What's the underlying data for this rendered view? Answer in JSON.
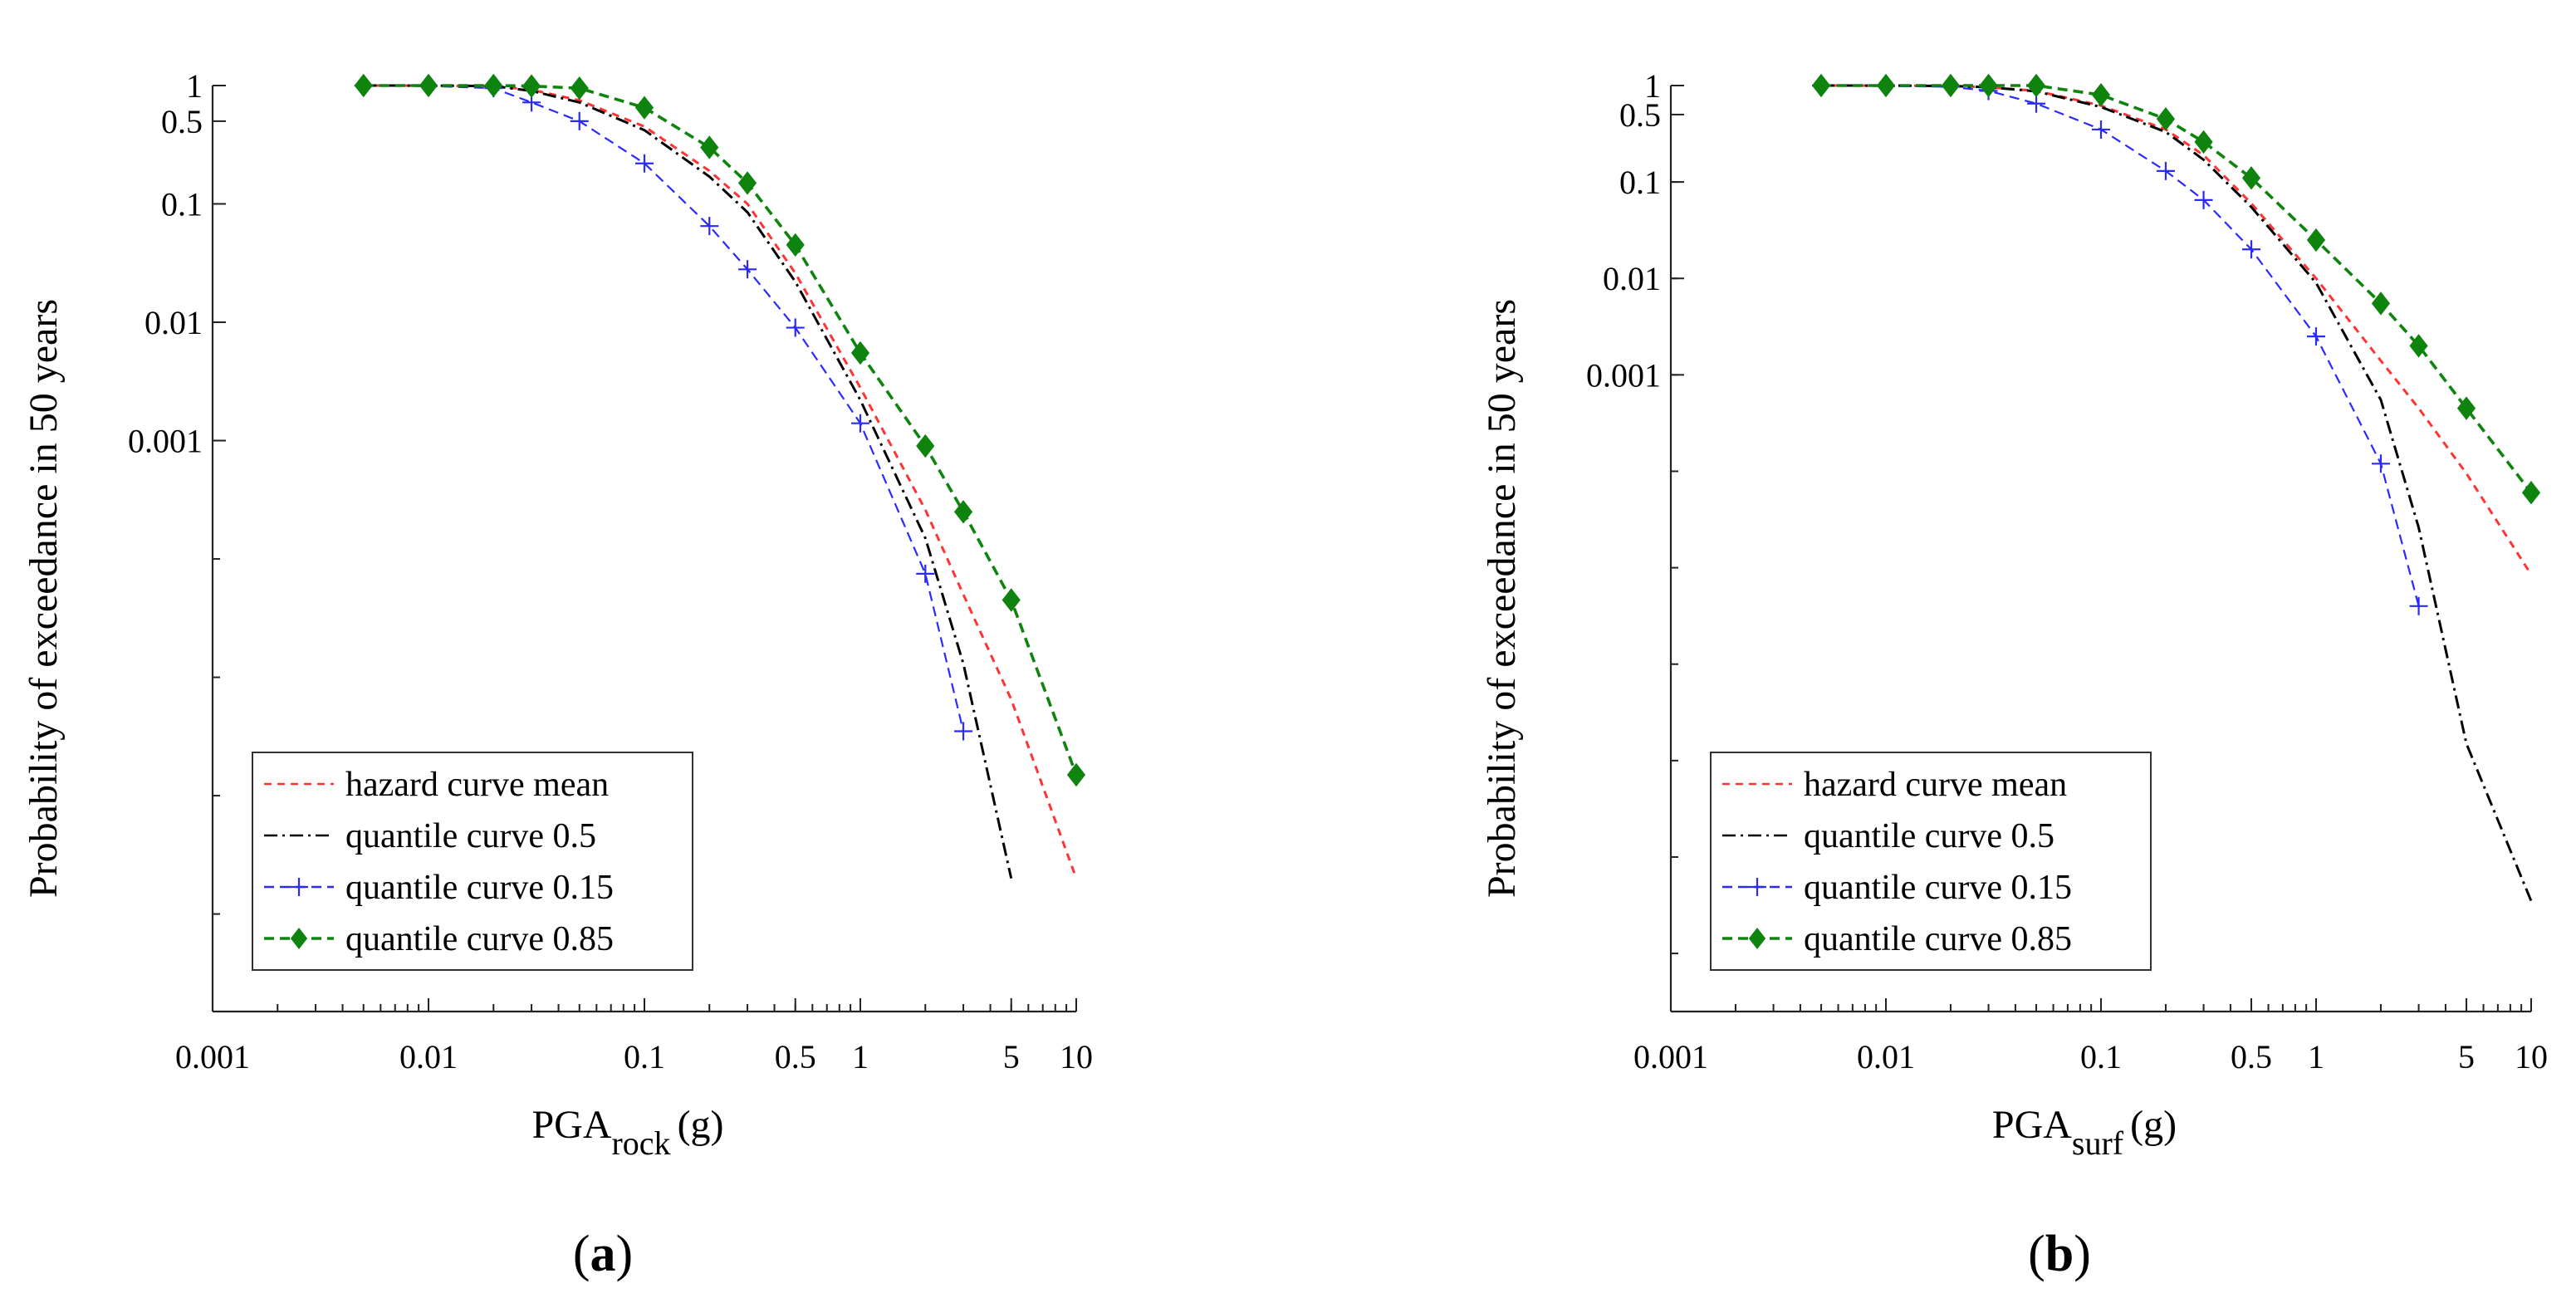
{
  "chart_data": [
    {
      "type": "line",
      "panel_label": "a",
      "xlabel_main": "PGA",
      "xlabel_sub": "rock",
      "xlabel_unit": "(g)",
      "ylabel": "Probability of exceedance in 50 years",
      "xscale": "log",
      "yscale": "log",
      "xlim": [
        0.001,
        10
      ],
      "ylim": [
        1.5e-08,
        1
      ],
      "xticks": [
        0.001,
        0.01,
        0.1,
        0.5,
        1,
        5,
        10
      ],
      "xtick_labels": [
        "0.001",
        "0.01",
        "0.1",
        "0.5",
        "1",
        "5",
        "10"
      ],
      "yticks": [
        1,
        0.5,
        0.1,
        0.01,
        0.001
      ],
      "ytick_labels": [
        "1",
        "0.5",
        "0.1",
        "0.01",
        "0.001"
      ],
      "legend_position": "bottom-left",
      "series": [
        {
          "name": "hazard curve mean",
          "color": "#ff3333",
          "style": "dotted",
          "marker": "none",
          "x": [
            0.005,
            0.01,
            0.02,
            0.03,
            0.05,
            0.1,
            0.2,
            0.3,
            0.5,
            1,
            2,
            3,
            5,
            10
          ],
          "y": [
            1,
            0.999,
            0.99,
            0.92,
            0.75,
            0.45,
            0.19,
            0.1,
            0.026,
            0.0028,
            0.00026,
            5e-05,
            6.5e-06,
            2e-07
          ]
        },
        {
          "name": "quantile curve 0.5",
          "color": "#000000",
          "style": "dashdot",
          "marker": "none",
          "x": [
            0.005,
            0.01,
            0.02,
            0.03,
            0.05,
            0.1,
            0.2,
            0.3,
            0.5,
            1,
            2,
            3,
            5
          ],
          "y": [
            1,
            0.999,
            0.99,
            0.9,
            0.72,
            0.42,
            0.17,
            0.085,
            0.022,
            0.0022,
            0.00015,
            1.3e-05,
            2e-07
          ]
        },
        {
          "name": "quantile curve 0.15",
          "color": "#2a2aff",
          "style": "dashed",
          "marker": "plus",
          "x": [
            0.005,
            0.01,
            0.02,
            0.03,
            0.05,
            0.1,
            0.2,
            0.3,
            0.5,
            1,
            2,
            3
          ],
          "y": [
            1,
            0.99,
            0.95,
            0.72,
            0.5,
            0.22,
            0.065,
            0.028,
            0.009,
            0.0014,
            7.5e-05,
            3.5e-06
          ]
        },
        {
          "name": "quantile curve 0.85",
          "color": "#0e840e",
          "style": "dashed",
          "marker": "diamond",
          "x": [
            0.005,
            0.01,
            0.02,
            0.03,
            0.05,
            0.1,
            0.2,
            0.3,
            0.5,
            1,
            2,
            3,
            5,
            10
          ],
          "y": [
            1,
            1,
            1,
            0.99,
            0.95,
            0.65,
            0.3,
            0.15,
            0.045,
            0.0055,
            0.0009,
            0.00025,
            4.5e-05,
            1.5e-06
          ]
        }
      ]
    },
    {
      "type": "line",
      "panel_label": "b",
      "xlabel_main": "PGA",
      "xlabel_sub": "surf",
      "xlabel_unit": "(g)",
      "ylabel": "Probability of exceedance in 50 years",
      "xscale": "log",
      "yscale": "log",
      "xlim": [
        0.001,
        10
      ],
      "ylim": [
        2.5e-10,
        1
      ],
      "xticks": [
        0.001,
        0.01,
        0.1,
        0.5,
        1,
        5,
        10
      ],
      "xtick_labels": [
        "0.001",
        "0.01",
        "0.1",
        "0.5",
        "1",
        "5",
        "10"
      ],
      "yticks": [
        1,
        0.5,
        0.1,
        0.01,
        0.001
      ],
      "ytick_labels": [
        "1",
        "0.5",
        "0.1",
        "0.01",
        "0.001"
      ],
      "legend_position": "bottom-left",
      "series": [
        {
          "name": "hazard curve mean",
          "color": "#ff3333",
          "style": "dotted",
          "marker": "none",
          "x": [
            0.005,
            0.01,
            0.02,
            0.03,
            0.05,
            0.1,
            0.2,
            0.3,
            0.5,
            1,
            2,
            3,
            5,
            10
          ],
          "y": [
            1,
            0.999,
            0.99,
            0.96,
            0.88,
            0.62,
            0.35,
            0.19,
            0.06,
            0.01,
            0.0014,
            0.00045,
            9.5e-05,
            8.5e-06
          ]
        },
        {
          "name": "quantile curve 0.5",
          "color": "#000000",
          "style": "dashdot",
          "marker": "none",
          "x": [
            0.005,
            0.01,
            0.02,
            0.03,
            0.05,
            0.1,
            0.2,
            0.3,
            0.5,
            1,
            2,
            3,
            5,
            10
          ],
          "y": [
            1,
            0.999,
            0.99,
            0.96,
            0.87,
            0.6,
            0.33,
            0.17,
            0.055,
            0.009,
            0.00055,
            2.6e-05,
            1.5e-07,
            3.5e-09
          ]
        },
        {
          "name": "quantile curve 0.15",
          "color": "#2a2aff",
          "style": "dashed",
          "marker": "plus",
          "x": [
            0.005,
            0.01,
            0.02,
            0.03,
            0.05,
            0.1,
            0.2,
            0.3,
            0.5,
            1,
            2,
            3
          ],
          "y": [
            1,
            0.99,
            0.97,
            0.88,
            0.65,
            0.35,
            0.13,
            0.065,
            0.02,
            0.0025,
            0.00012,
            4e-06
          ]
        },
        {
          "name": "quantile curve 0.85",
          "color": "#0e840e",
          "style": "dashed",
          "marker": "diamond",
          "x": [
            0.005,
            0.01,
            0.02,
            0.03,
            0.05,
            0.1,
            0.2,
            0.3,
            0.5,
            1,
            2,
            3,
            5,
            10
          ],
          "y": [
            1,
            1,
            1,
            1,
            1,
            0.8,
            0.45,
            0.26,
            0.11,
            0.025,
            0.0055,
            0.002,
            0.00045,
            6e-05
          ]
        }
      ]
    }
  ]
}
